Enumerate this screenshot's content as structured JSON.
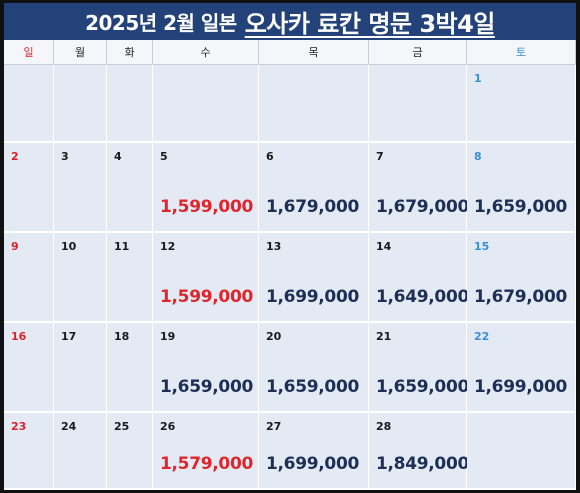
{
  "title": {
    "prefix": "2025년 2월 일본",
    "main": "오사카 료칸 명문 3박4일"
  },
  "weekdays": [
    "일",
    "월",
    "화",
    "수",
    "목",
    "금",
    "토"
  ],
  "weeks": [
    [
      {
        "day": ""
      },
      {
        "day": ""
      },
      {
        "day": ""
      },
      {
        "day": ""
      },
      {
        "day": ""
      },
      {
        "day": ""
      },
      {
        "day": "1"
      }
    ],
    [
      {
        "day": "2"
      },
      {
        "day": "3"
      },
      {
        "day": "4"
      },
      {
        "day": "5",
        "price": "1,599,000",
        "highlight": true
      },
      {
        "day": "6",
        "price": "1,679,000"
      },
      {
        "day": "7",
        "price": "1,679,000"
      },
      {
        "day": "8",
        "price": "1,659,000"
      }
    ],
    [
      {
        "day": "9"
      },
      {
        "day": "10"
      },
      {
        "day": "11"
      },
      {
        "day": "12",
        "price": "1,599,000",
        "highlight": true
      },
      {
        "day": "13",
        "price": "1,699,000"
      },
      {
        "day": "14",
        "price": "1,649,000"
      },
      {
        "day": "15",
        "price": "1,679,000"
      }
    ],
    [
      {
        "day": "16"
      },
      {
        "day": "17"
      },
      {
        "day": "18"
      },
      {
        "day": "19",
        "price": "1,659,000"
      },
      {
        "day": "20",
        "price": "1,659,000"
      },
      {
        "day": "21",
        "price": "1,659,000"
      },
      {
        "day": "22",
        "price": "1,699,000"
      }
    ],
    [
      {
        "day": "23"
      },
      {
        "day": "24"
      },
      {
        "day": "25"
      },
      {
        "day": "26",
        "price": "1,579,000",
        "highlight": true
      },
      {
        "day": "27",
        "price": "1,699,000"
      },
      {
        "day": "28",
        "price": "1,849,000"
      },
      {
        "day": ""
      }
    ]
  ],
  "colors": {
    "header_bg": "#24427a",
    "cell_bg": "#e3eaf4",
    "sunday": "#d9232a",
    "saturday": "#3a8fd6",
    "price": "#1d2f55",
    "price_highlight": "#e0262c"
  }
}
